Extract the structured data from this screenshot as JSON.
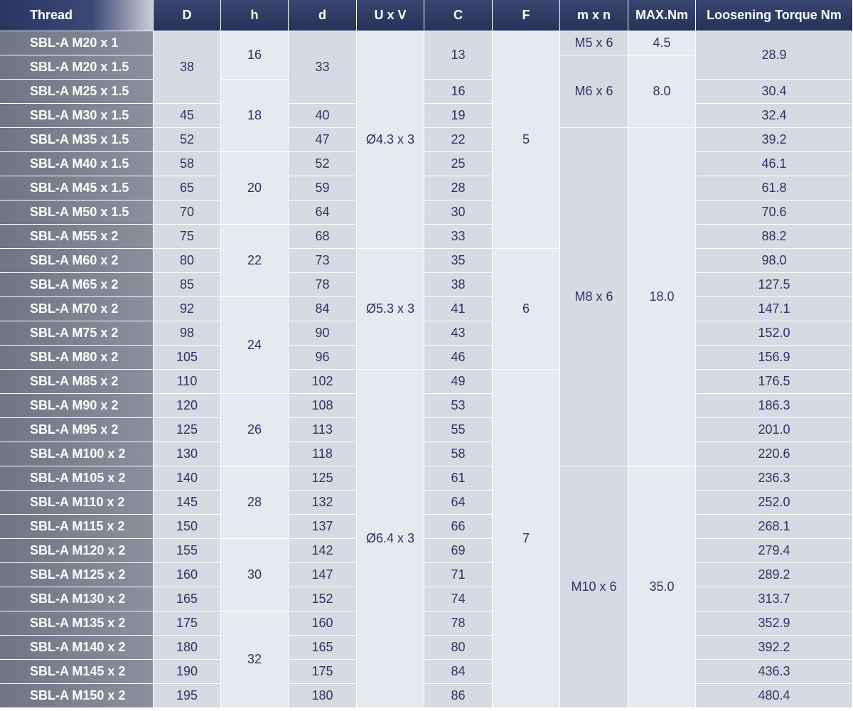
{
  "table": {
    "header": [
      "Thread",
      "D",
      "h",
      "d",
      "U x V",
      "C",
      "F",
      "m x n",
      "MAX.Nm",
      "Loosening Torque Nm"
    ],
    "rows": [
      [
        "SBL-A M20 x 1",
        "38",
        "16",
        "33",
        "Ø4.3 x 3",
        "13",
        "5",
        "M5 x 6",
        "4.5",
        "28.9"
      ],
      [
        "SBL-A M20 x 1.5",
        null,
        null,
        null,
        null,
        null,
        null,
        "M6 x 6",
        "8.0",
        null
      ],
      [
        "SBL-A M25 x 1.5",
        null,
        "18",
        null,
        null,
        "16",
        null,
        null,
        null,
        "30.4"
      ],
      [
        "SBL-A M30 x 1.5",
        "45",
        null,
        "40",
        null,
        "19",
        null,
        null,
        null,
        "32.4"
      ],
      [
        "SBL-A M35 x 1.5",
        "52",
        null,
        "47",
        null,
        "22",
        null,
        "M8 x 6",
        "18.0",
        "39.2"
      ],
      [
        "SBL-A M40 x 1.5",
        "58",
        "20",
        "52",
        null,
        "25",
        null,
        null,
        null,
        "46.1"
      ],
      [
        "SBL-A M45 x 1.5",
        "65",
        null,
        "59",
        null,
        "28",
        null,
        null,
        null,
        "61.8"
      ],
      [
        "SBL-A M50 x 1.5",
        "70",
        null,
        "64",
        null,
        "30",
        null,
        null,
        null,
        "70.6"
      ],
      [
        "SBL-A M55 x 2",
        "75",
        "22",
        "68",
        null,
        "33",
        null,
        null,
        null,
        "88.2"
      ],
      [
        "SBL-A M60 x 2",
        "80",
        null,
        "73",
        "Ø5.3 x 3",
        "35",
        "6",
        null,
        null,
        "98.0"
      ],
      [
        "SBL-A M65 x 2",
        "85",
        null,
        "78",
        null,
        "38",
        null,
        null,
        null,
        "127.5"
      ],
      [
        "SBL-A M70 x 2",
        "92",
        "24",
        "84",
        null,
        "41",
        null,
        null,
        null,
        "147.1"
      ],
      [
        "SBL-A M75 x 2",
        "98",
        null,
        "90",
        null,
        "43",
        null,
        null,
        null,
        "152.0"
      ],
      [
        "SBL-A M80 x 2",
        "105",
        null,
        "96",
        null,
        "46",
        null,
        null,
        null,
        "156.9"
      ],
      [
        "SBL-A M85 x 2",
        "110",
        null,
        "102",
        "Ø6.4 x 3",
        "49",
        "7",
        null,
        null,
        "176.5"
      ],
      [
        "SBL-A M90 x 2",
        "120",
        "26",
        "108",
        null,
        "53",
        null,
        null,
        null,
        "186.3"
      ],
      [
        "SBL-A M95 x 2",
        "125",
        null,
        "113",
        null,
        "55",
        null,
        null,
        null,
        "201.0"
      ],
      [
        "SBL-A M100 x 2",
        "130",
        null,
        "118",
        null,
        "58",
        null,
        null,
        null,
        "220.6"
      ],
      [
        "SBL-A M105 x 2",
        "140",
        "28",
        "125",
        null,
        "61",
        null,
        "M10 x 6",
        "35.0",
        "236.3"
      ],
      [
        "SBL-A M110 x 2",
        "145",
        null,
        "132",
        null,
        "64",
        null,
        null,
        null,
        "252.0"
      ],
      [
        "SBL-A M115 x 2",
        "150",
        null,
        "137",
        null,
        "66",
        null,
        null,
        null,
        "268.1"
      ],
      [
        "SBL-A M120 x 2",
        "155",
        "30",
        "142",
        null,
        "69",
        null,
        null,
        null,
        "279.4"
      ],
      [
        "SBL-A M125 x 2",
        "160",
        null,
        "147",
        null,
        "71",
        null,
        null,
        null,
        "289.2"
      ],
      [
        "SBL-A M130 x 2",
        "165",
        null,
        "152",
        null,
        "74",
        null,
        null,
        null,
        "313.7"
      ],
      [
        "SBL-A M135 x 2",
        "175",
        "32",
        "160",
        null,
        "78",
        null,
        null,
        null,
        "352.9"
      ],
      [
        "SBL-A M140 x 2",
        "180",
        null,
        "165",
        null,
        "80",
        null,
        null,
        null,
        "392.2"
      ],
      [
        "SBL-A M145 x 2",
        "190",
        null,
        "175",
        null,
        "84",
        null,
        null,
        null,
        "436.3"
      ],
      [
        "SBL-A M150 x 2",
        "195",
        null,
        "180",
        null,
        "86",
        null,
        null,
        null,
        "480.4"
      ]
    ]
  }
}
